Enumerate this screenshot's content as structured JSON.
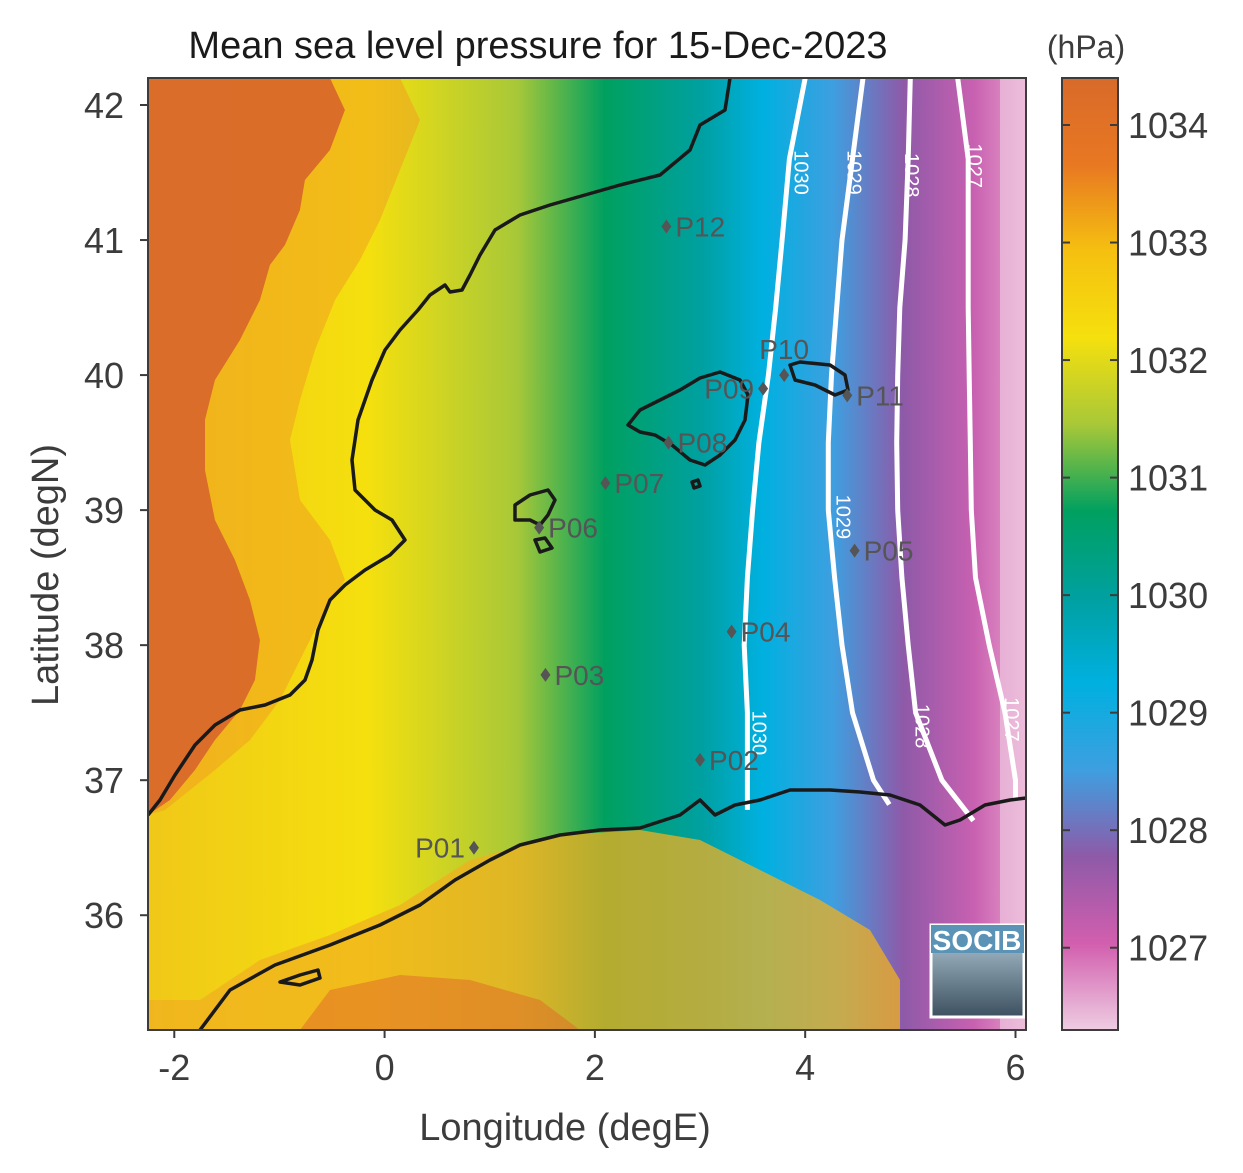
{
  "map": {
    "title": "Mean sea level pressure for 15-Dec-2023",
    "xlabel": "Longitude (degE)",
    "ylabel": "Latitude (degN)",
    "xlim": [
      -2.25,
      6.1
    ],
    "ylim": [
      35.15,
      42.2
    ],
    "xticks": [
      {
        "v": -2,
        "label": "-2"
      },
      {
        "v": 0,
        "label": "0"
      },
      {
        "v": 2,
        "label": "2"
      },
      {
        "v": 4,
        "label": "4"
      },
      {
        "v": 6,
        "label": "6"
      }
    ],
    "yticks": [
      {
        "v": 42,
        "label": "42"
      },
      {
        "v": 41,
        "label": "41"
      },
      {
        "v": 40,
        "label": "40"
      },
      {
        "v": 39,
        "label": "39"
      },
      {
        "v": 38,
        "label": "38"
      },
      {
        "v": 37,
        "label": "37"
      },
      {
        "v": 36,
        "label": "36"
      }
    ],
    "colorbar": {
      "unit": "(hPa)",
      "range": [
        1026.3,
        1034.4
      ],
      "ticks": [
        {
          "v": 1034,
          "label": "1034"
        },
        {
          "v": 1033,
          "label": "1033"
        },
        {
          "v": 1032,
          "label": "1032"
        },
        {
          "v": 1031,
          "label": "1031"
        },
        {
          "v": 1030,
          "label": "1030"
        },
        {
          "v": 1029,
          "label": "1029"
        },
        {
          "v": 1028,
          "label": "1028"
        },
        {
          "v": 1027,
          "label": "1027"
        }
      ],
      "colors": [
        "#eecde2",
        "#d25eae",
        "#8e5aa8",
        "#3e9fe0",
        "#00b0e0",
        "#00a0a0",
        "#00a060",
        "#a8c838",
        "#f5e00e",
        "#f5c010",
        "#e87822",
        "#d86a2a"
      ]
    },
    "contours": [
      {
        "level": 1030,
        "label": "1030",
        "labels": [
          {
            "lon": 3.9,
            "lat": 41.5,
            "label": "1030"
          },
          {
            "lon": 3.5,
            "lat": 37.35,
            "label": "1030"
          }
        ],
        "points": [
          [
            4.0,
            42.2
          ],
          [
            3.85,
            41.6
          ],
          [
            3.78,
            41.0
          ],
          [
            3.72,
            40.5
          ],
          [
            3.65,
            40.0
          ],
          [
            3.56,
            39.5
          ],
          [
            3.5,
            39.0
          ],
          [
            3.45,
            38.5
          ],
          [
            3.42,
            38.0
          ],
          [
            3.45,
            37.5
          ],
          [
            3.45,
            37.0
          ],
          [
            3.45,
            36.78
          ]
        ]
      },
      {
        "level": 1029,
        "label": "1029",
        "labels": [
          {
            "lon": 4.4,
            "lat": 41.5,
            "label": "1029"
          },
          {
            "lon": 4.3,
            "lat": 38.95,
            "label": "1029"
          }
        ],
        "points": [
          [
            4.55,
            42.2
          ],
          [
            4.45,
            41.6
          ],
          [
            4.35,
            41.0
          ],
          [
            4.3,
            40.5
          ],
          [
            4.25,
            40.0
          ],
          [
            4.22,
            39.5
          ],
          [
            4.22,
            39.0
          ],
          [
            4.28,
            38.5
          ],
          [
            4.35,
            38.0
          ],
          [
            4.45,
            37.5
          ],
          [
            4.65,
            37.0
          ],
          [
            4.8,
            36.82
          ]
        ]
      },
      {
        "level": 1028,
        "label": "1028",
        "labels": [
          {
            "lon": 4.95,
            "lat": 41.48,
            "label": "1028"
          },
          {
            "lon": 5.05,
            "lat": 37.4,
            "label": "1028"
          }
        ],
        "points": [
          [
            5.0,
            42.2
          ],
          [
            4.98,
            41.6
          ],
          [
            4.95,
            41.0
          ],
          [
            4.9,
            40.5
          ],
          [
            4.88,
            40.0
          ],
          [
            4.87,
            39.5
          ],
          [
            4.88,
            39.0
          ],
          [
            4.92,
            38.5
          ],
          [
            4.98,
            38.0
          ],
          [
            5.05,
            37.5
          ],
          [
            5.3,
            37.0
          ],
          [
            5.6,
            36.7
          ]
        ]
      },
      {
        "level": 1027,
        "label": "1027",
        "labels": [
          {
            "lon": 5.55,
            "lat": 41.55,
            "label": "1027"
          },
          {
            "lon": 5.9,
            "lat": 37.45,
            "label": "1027"
          }
        ],
        "points": [
          [
            5.45,
            42.2
          ],
          [
            5.55,
            41.6
          ],
          [
            5.55,
            41.0
          ],
          [
            5.55,
            40.5
          ],
          [
            5.56,
            40.0
          ],
          [
            5.57,
            39.5
          ],
          [
            5.58,
            39.0
          ],
          [
            5.62,
            38.5
          ],
          [
            5.75,
            38.0
          ],
          [
            5.9,
            37.5
          ],
          [
            6.0,
            37.0
          ],
          [
            6.0,
            36.85
          ]
        ]
      }
    ],
    "stations": [
      {
        "id": "P01",
        "lon": 0.85,
        "lat": 36.5,
        "label_side": "left"
      },
      {
        "id": "P02",
        "lon": 3.0,
        "lat": 37.15,
        "label_side": "right"
      },
      {
        "id": "P03",
        "lon": 1.53,
        "lat": 37.78,
        "label_side": "right"
      },
      {
        "id": "P04",
        "lon": 3.3,
        "lat": 38.1,
        "label_side": "right"
      },
      {
        "id": "P05",
        "lon": 4.47,
        "lat": 38.7,
        "label_side": "right"
      },
      {
        "id": "P06",
        "lon": 1.47,
        "lat": 38.87,
        "label_side": "right"
      },
      {
        "id": "P07",
        "lon": 2.1,
        "lat": 39.2,
        "label_side": "right"
      },
      {
        "id": "P08",
        "lon": 2.7,
        "lat": 39.5,
        "label_side": "right"
      },
      {
        "id": "P09",
        "lon": 3.6,
        "lat": 39.9,
        "label_side": "left"
      },
      {
        "id": "P10",
        "lon": 3.8,
        "lat": 40.0,
        "label_side": "above"
      },
      {
        "id": "P11",
        "lon": 4.4,
        "lat": 39.85,
        "label_side": "right"
      },
      {
        "id": "P12",
        "lon": 2.68,
        "lat": 41.1,
        "label_side": "right"
      }
    ],
    "logo": {
      "text": "SOCIB"
    }
  }
}
